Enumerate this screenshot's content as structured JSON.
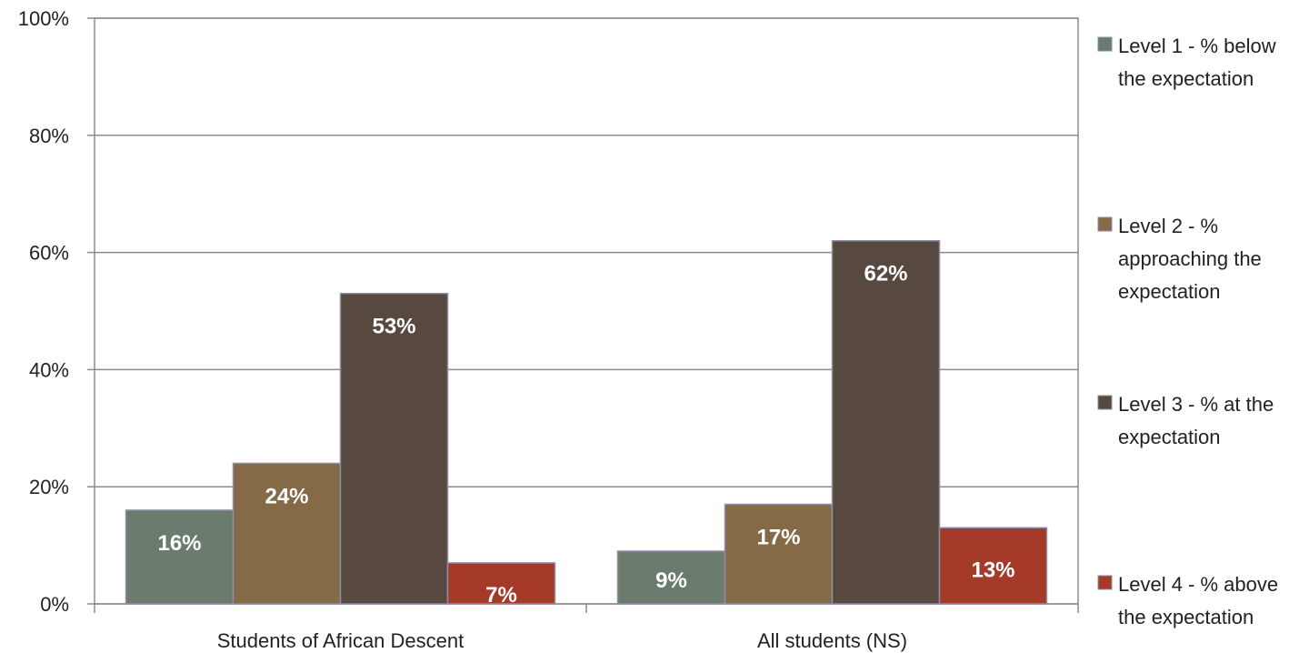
{
  "chart_data": {
    "type": "bar",
    "categories": [
      "Students of African Descent",
      "All students (NS)"
    ],
    "series": [
      {
        "name": "Level 1 - % below the expectation",
        "legend_lines": [
          "Level 1 - % below",
          "the expectation"
        ],
        "color": "#6b7b6e",
        "values": [
          16,
          9
        ],
        "labels": [
          "16%",
          "9%"
        ]
      },
      {
        "name": "Level 2 - % approaching the expectation",
        "legend_lines": [
          "Level 2 - %",
          "approaching the",
          "expectation"
        ],
        "color": "#846a47",
        "values": [
          24,
          17
        ],
        "labels": [
          "24%",
          "17%"
        ]
      },
      {
        "name": "Level 3 - % at the expectation",
        "legend_lines": [
          "Level 3 - % at the",
          "expectation"
        ],
        "color": "#574840",
        "values": [
          53,
          62
        ],
        "labels": [
          "53%",
          "62%"
        ]
      },
      {
        "name": "Level 4 - % above the expectation",
        "legend_lines": [
          "Level 4 - % above",
          "the expectation"
        ],
        "color": "#a63a28",
        "values": [
          7,
          13
        ],
        "labels": [
          "7%",
          "13%"
        ]
      }
    ],
    "yticks": [
      "0%",
      "20%",
      "40%",
      "60%",
      "80%",
      "100%"
    ],
    "ylim": [
      0,
      100
    ],
    "grid": true,
    "legend_position": "right",
    "title": "",
    "xlabel": "",
    "ylabel": ""
  }
}
